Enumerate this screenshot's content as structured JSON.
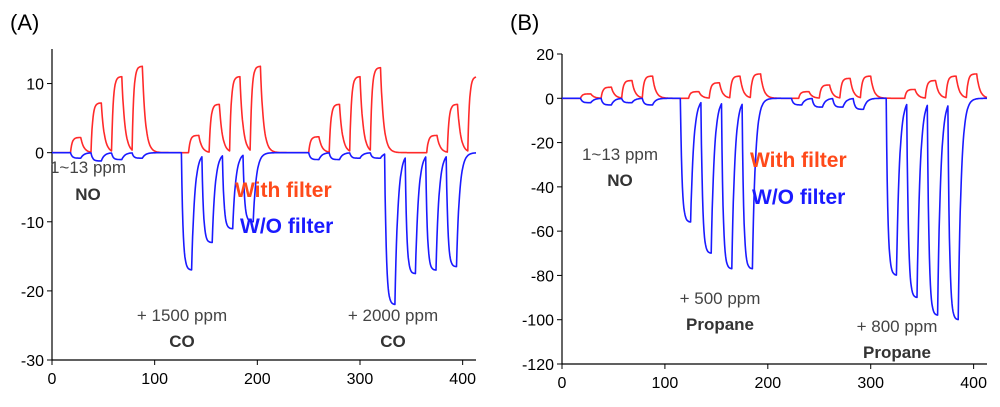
{
  "chart_data": [
    {
      "type": "line",
      "panel_label": "(A)",
      "xlim": [
        0,
        413
      ],
      "ylim": [
        -30,
        15
      ],
      "xticks": [
        0,
        100,
        200,
        300,
        400
      ],
      "yticks": [
        10,
        0,
        -10,
        -20,
        -30
      ],
      "series": [
        {
          "name": "With filter",
          "color": "#ff2a2a",
          "events": [
            {
              "start": 18,
              "end": 28,
              "level": 2.2
            },
            {
              "start": 38,
              "end": 48,
              "level": 7.2
            },
            {
              "start": 58,
              "end": 68,
              "level": 11.0
            },
            {
              "start": 78,
              "end": 88,
              "level": 12.5
            },
            {
              "start": 133,
              "end": 143,
              "level": 2.5
            },
            {
              "start": 153,
              "end": 163,
              "level": 7.0
            },
            {
              "start": 173,
              "end": 183,
              "level": 11.0
            },
            {
              "start": 193,
              "end": 203,
              "level": 12.5
            },
            {
              "start": 250,
              "end": 260,
              "level": 2.3
            },
            {
              "start": 270,
              "end": 280,
              "level": 7.0
            },
            {
              "start": 290,
              "end": 300,
              "level": 11.0
            },
            {
              "start": 310,
              "end": 320,
              "level": 12.3
            },
            {
              "start": 365,
              "end": 375,
              "level": 2.5
            },
            {
              "start": 385,
              "end": 395,
              "level": 7.0
            },
            {
              "start": 405,
              "end": 413,
              "level": 11.0
            }
          ]
        },
        {
          "name": "W/O filter",
          "color": "#1a1aff",
          "events": [
            {
              "start": 18,
              "end": 28,
              "level": -0.8
            },
            {
              "start": 38,
              "end": 48,
              "level": -1.2
            },
            {
              "start": 58,
              "end": 68,
              "level": -1.0
            },
            {
              "start": 78,
              "end": 88,
              "level": -0.8
            },
            {
              "start": 126,
              "end": 136,
              "level": -17.0
            },
            {
              "start": 146,
              "end": 156,
              "level": -13.0
            },
            {
              "start": 166,
              "end": 176,
              "level": -11.0
            },
            {
              "start": 186,
              "end": 196,
              "level": -10.0
            },
            {
              "start": 250,
              "end": 260,
              "level": -1.0
            },
            {
              "start": 270,
              "end": 280,
              "level": -1.0
            },
            {
              "start": 290,
              "end": 300,
              "level": -0.8
            },
            {
              "start": 310,
              "end": 320,
              "level": -0.8
            },
            {
              "start": 324,
              "end": 334,
              "level": -22.0
            },
            {
              "start": 344,
              "end": 354,
              "level": -17.5
            },
            {
              "start": 364,
              "end": 374,
              "level": -17.0
            },
            {
              "start": 384,
              "end": 394,
              "level": -16.5
            }
          ]
        }
      ],
      "annotations": [
        {
          "text": "1~13 ppm",
          "style": "gray"
        },
        {
          "text": "NO",
          "style": "bold"
        },
        {
          "text": "+ 1500 ppm",
          "style": "gray"
        },
        {
          "text": "CO",
          "style": "bold"
        },
        {
          "text": "+ 2000 ppm",
          "style": "gray"
        },
        {
          "text": "CO",
          "style": "bold"
        }
      ],
      "legend": [
        {
          "text": "With filter",
          "color": "#ff4a1a"
        },
        {
          "text": "W/O filter",
          "color": "#1a1aff"
        }
      ]
    },
    {
      "type": "line",
      "panel_label": "(B)",
      "xlim": [
        0,
        413
      ],
      "ylim": [
        -120,
        20
      ],
      "xticks": [
        0,
        100,
        200,
        300,
        400
      ],
      "yticks": [
        20,
        0,
        -20,
        -40,
        -60,
        -80,
        -100,
        -120
      ],
      "series": [
        {
          "name": "With filter",
          "color": "#ff2a2a",
          "events": [
            {
              "start": 18,
              "end": 28,
              "level": 2.0
            },
            {
              "start": 38,
              "end": 48,
              "level": 5.0
            },
            {
              "start": 58,
              "end": 68,
              "level": 8.0
            },
            {
              "start": 78,
              "end": 88,
              "level": 10.0
            },
            {
              "start": 123,
              "end": 133,
              "level": 3.0
            },
            {
              "start": 143,
              "end": 153,
              "level": 7.0
            },
            {
              "start": 163,
              "end": 173,
              "level": 10.0
            },
            {
              "start": 183,
              "end": 193,
              "level": 11.0
            },
            {
              "start": 230,
              "end": 240,
              "level": 3.0
            },
            {
              "start": 250,
              "end": 260,
              "level": 6.0
            },
            {
              "start": 270,
              "end": 280,
              "level": 9.0
            },
            {
              "start": 290,
              "end": 300,
              "level": 10.0
            },
            {
              "start": 333,
              "end": 343,
              "level": 4.0
            },
            {
              "start": 353,
              "end": 363,
              "level": 8.0
            },
            {
              "start": 373,
              "end": 383,
              "level": 10.0
            },
            {
              "start": 393,
              "end": 403,
              "level": 11.0
            }
          ]
        },
        {
          "name": "W/O filter",
          "color": "#1a1aff",
          "events": [
            {
              "start": 18,
              "end": 28,
              "level": -2.0
            },
            {
              "start": 38,
              "end": 48,
              "level": -3.0
            },
            {
              "start": 58,
              "end": 68,
              "level": -2.0
            },
            {
              "start": 78,
              "end": 88,
              "level": -3.0
            },
            {
              "start": 115,
              "end": 125,
              "level": -56.0
            },
            {
              "start": 135,
              "end": 145,
              "level": -70.0
            },
            {
              "start": 155,
              "end": 165,
              "level": -77.0
            },
            {
              "start": 175,
              "end": 185,
              "level": -77.0
            },
            {
              "start": 223,
              "end": 233,
              "level": -3.0
            },
            {
              "start": 243,
              "end": 253,
              "level": -4.0
            },
            {
              "start": 263,
              "end": 273,
              "level": -4.0
            },
            {
              "start": 283,
              "end": 293,
              "level": -5.0
            },
            {
              "start": 315,
              "end": 325,
              "level": -80.0
            },
            {
              "start": 335,
              "end": 345,
              "level": -90.0
            },
            {
              "start": 355,
              "end": 365,
              "level": -98.0
            },
            {
              "start": 375,
              "end": 385,
              "level": -100.0
            }
          ]
        }
      ],
      "annotations": [
        {
          "text": "1~13 ppm",
          "style": "gray"
        },
        {
          "text": "NO",
          "style": "bold"
        },
        {
          "text": "+ 500 ppm",
          "style": "gray"
        },
        {
          "text": "Propane",
          "style": "bold"
        },
        {
          "text": "+ 800 ppm",
          "style": "gray"
        },
        {
          "text": "Propane",
          "style": "bold"
        }
      ],
      "legend": [
        {
          "text": "With filter",
          "color": "#ff4a1a"
        },
        {
          "text": "W/O filter",
          "color": "#1a1aff"
        }
      ]
    }
  ]
}
